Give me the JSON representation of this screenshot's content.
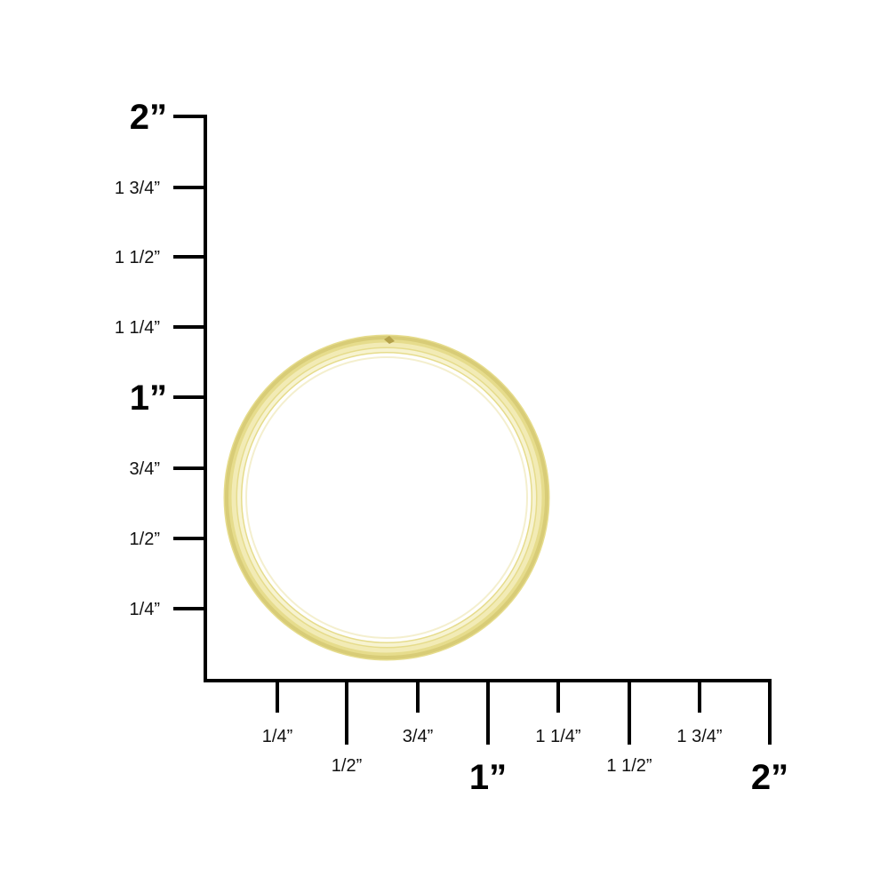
{
  "vertical_scale": {
    "labels": [
      "2”",
      "1 3/4”",
      "1 1/2”",
      "1 1/4”",
      "1”",
      "3/4”",
      "1/2”",
      "1/4”"
    ]
  },
  "horizontal_scale": {
    "labels": [
      "1/4”",
      "1/2”",
      "3/4”",
      "1”",
      "1 1/4”",
      "1 1/2”",
      "1 3/4”",
      "2”"
    ]
  },
  "product": {
    "object": "split key ring",
    "color": "#e6dc8c",
    "outer_diameter_in": 1.16
  },
  "colors": {
    "axis": "#000000",
    "ring_light": "#f4efc0",
    "ring_dark": "#c9b860"
  }
}
